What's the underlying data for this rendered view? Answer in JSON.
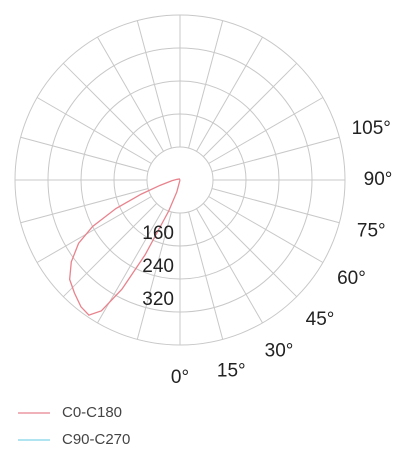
{
  "chart_data": {
    "type": "polar",
    "rlim": [
      0,
      400
    ],
    "rticks": [
      160,
      240,
      320
    ],
    "rgrid": [
      80,
      160,
      240,
      320,
      400
    ],
    "angle_ticks": [
      {
        "value": 0,
        "label": "0°"
      },
      {
        "value": 15,
        "label": "15°"
      },
      {
        "value": 30,
        "label": "30°"
      },
      {
        "value": 45,
        "label": "45°"
      },
      {
        "value": 60,
        "label": "60°"
      },
      {
        "value": 75,
        "label": "75°"
      },
      {
        "value": 90,
        "label": "90°"
      },
      {
        "value": 105,
        "label": "105°"
      }
    ],
    "angle_step": 15,
    "series": [
      {
        "name": "C0-C180",
        "color": "#e8838d",
        "angles": [
          180,
          -150,
          -100,
          -85,
          -75,
          -70,
          -66,
          -62,
          -58,
          -53,
          -48,
          -43,
          -38,
          -34,
          -31,
          -28,
          -25,
          -20,
          -15,
          0
        ],
        "values": [
          0,
          3,
          8,
          20,
          50,
          100,
          170,
          240,
          290,
          330,
          360,
          375,
          390,
          395,
          370,
          300,
          200,
          80,
          30,
          0
        ]
      },
      {
        "name": "C90-C270",
        "color": "#7fd3e8",
        "angles": [],
        "values": []
      }
    ]
  }
}
